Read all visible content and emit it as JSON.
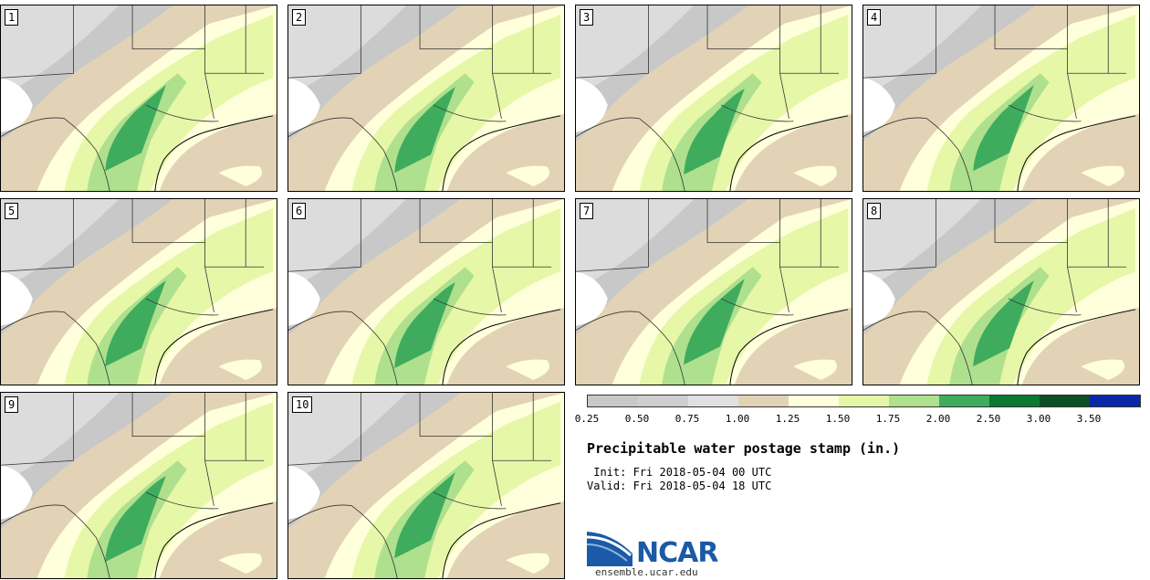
{
  "colors": {
    "bin_0_25": "#e0e0e0",
    "bin_0_50": "#c8c8c8",
    "bin_0_75": "#dcdcdc",
    "bin_1_00": "#e2d3b6",
    "bin_1_25": "#ffffdb",
    "bin_1_50": "#e6f7a8",
    "bin_1_75": "#aee08e",
    "bin_2_00": "#3eac5c",
    "bin_2_50": "#0a7a30",
    "bin_3_00": "#0b4f24",
    "bin_3_50": "#0828a8",
    "water": "#e2d3b6",
    "gulf": "#e2d3b6",
    "ncar_blue": "#1a5aa6"
  },
  "members": [
    {
      "label": "1"
    },
    {
      "label": "2"
    },
    {
      "label": "3"
    },
    {
      "label": "4"
    },
    {
      "label": "5"
    },
    {
      "label": "6"
    },
    {
      "label": "7"
    },
    {
      "label": "8"
    },
    {
      "label": "9"
    },
    {
      "label": "10"
    }
  ],
  "colorbar": {
    "ticks": [
      "0.25",
      "0.50",
      "0.75",
      "1.00",
      "1.25",
      "1.50",
      "1.75",
      "2.00",
      "2.50",
      "3.00",
      "3.50"
    ],
    "swatches": [
      "#c8c8c8",
      "#cfcfcf",
      "#e0e0e0",
      "#e2d3b6",
      "#ffffdb",
      "#e6f7a8",
      "#aee08e",
      "#3eac5c",
      "#0a7a30",
      "#0b4f24",
      "#0828a8"
    ]
  },
  "title": "Precipitable water postage stamp (in.)",
  "init": " Init: Fri 2018-05-04 00 UTC",
  "valid": "Valid: Fri 2018-05-04 18 UTC",
  "logo": {
    "name": "NCAR",
    "url": "ensemble.ucar.edu"
  }
}
